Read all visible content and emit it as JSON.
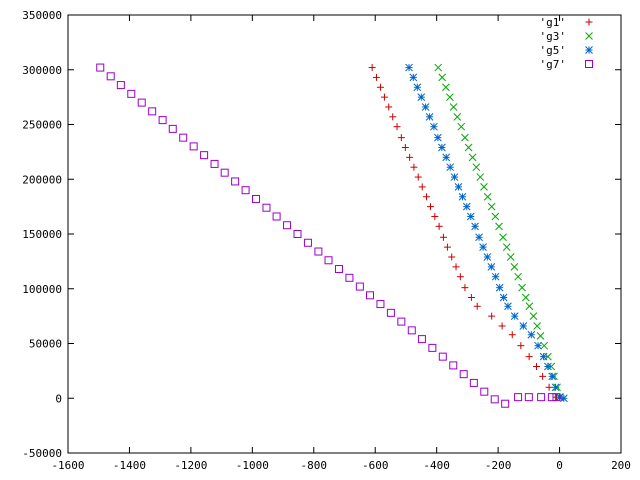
{
  "chart_data": {
    "type": "scatter",
    "title": "",
    "xlabel": "",
    "ylabel": "",
    "xlim": [
      -1600,
      200
    ],
    "ylim": [
      -50000,
      350000
    ],
    "xticks": [
      -1600,
      -1400,
      -1200,
      -1000,
      -800,
      -600,
      -400,
      -200,
      0,
      200
    ],
    "yticks": [
      -50000,
      0,
      50000,
      100000,
      150000,
      200000,
      250000,
      300000,
      350000
    ],
    "xtick_labels": [
      "-1600",
      "-1400",
      "-1200",
      "-1000",
      "-800",
      "-600",
      "-400",
      "-200",
      "0",
      "200"
    ],
    "ytick_labels": [
      "-50000",
      "0",
      "50000",
      "100000",
      "150000",
      "200000",
      "250000",
      "300000",
      "350000"
    ],
    "grid": false,
    "legend_position": "top-right",
    "series": [
      {
        "name": "'g1'",
        "marker": "plus",
        "color": "#cc0000",
        "points": [
          [
            -610,
            302000
          ],
          [
            -596,
            293000
          ],
          [
            -583,
            284000
          ],
          [
            -570,
            275000
          ],
          [
            -556,
            266000
          ],
          [
            -543,
            257000
          ],
          [
            -529,
            248000
          ],
          [
            -515,
            238000
          ],
          [
            -502,
            229000
          ],
          [
            -488,
            220000
          ],
          [
            -474,
            211000
          ],
          [
            -460,
            202000
          ],
          [
            -447,
            193000
          ],
          [
            -433,
            184000
          ],
          [
            -420,
            175000
          ],
          [
            -406,
            166000
          ],
          [
            -392,
            157000
          ],
          [
            -378,
            147000
          ],
          [
            -365,
            138000
          ],
          [
            -351,
            129000
          ],
          [
            -337,
            120000
          ],
          [
            -323,
            111000
          ],
          [
            -308,
            101000
          ],
          [
            -287,
            92000
          ],
          [
            -268,
            84000
          ],
          [
            -221,
            75000
          ],
          [
            -187,
            66000
          ],
          [
            -154,
            58000
          ],
          [
            -126,
            48000
          ],
          [
            -99,
            38000
          ],
          [
            -75,
            29000
          ],
          [
            -55,
            20000
          ],
          [
            -34,
            10000
          ],
          [
            -10,
            1000
          ]
        ]
      },
      {
        "name": "'g3'",
        "marker": "cross",
        "color": "#00aa00",
        "points": [
          [
            -395,
            302000
          ],
          [
            -382,
            293000
          ],
          [
            -370,
            284000
          ],
          [
            -357,
            275000
          ],
          [
            -345,
            266000
          ],
          [
            -333,
            257000
          ],
          [
            -320,
            248000
          ],
          [
            -308,
            238000
          ],
          [
            -296,
            229000
          ],
          [
            -283,
            220000
          ],
          [
            -271,
            211000
          ],
          [
            -258,
            202000
          ],
          [
            -246,
            193000
          ],
          [
            -234,
            184000
          ],
          [
            -221,
            175000
          ],
          [
            -209,
            166000
          ],
          [
            -197,
            157000
          ],
          [
            -184,
            147000
          ],
          [
            -172,
            138000
          ],
          [
            -159,
            129000
          ],
          [
            -147,
            120000
          ],
          [
            -135,
            111000
          ],
          [
            -122,
            101000
          ],
          [
            -110,
            92000
          ],
          [
            -98,
            84000
          ],
          [
            -85,
            75000
          ],
          [
            -73,
            66000
          ],
          [
            -62,
            57000
          ],
          [
            -50,
            48000
          ],
          [
            -38,
            38000
          ],
          [
            -27,
            29000
          ],
          [
            -18,
            20000
          ],
          [
            -8,
            10000
          ],
          [
            2,
            1000
          ]
        ]
      },
      {
        "name": "'g5'",
        "marker": "star",
        "color": "#0066cc",
        "points": [
          [
            -490,
            302000
          ],
          [
            -476,
            293000
          ],
          [
            -463,
            284000
          ],
          [
            -450,
            275000
          ],
          [
            -436,
            266000
          ],
          [
            -423,
            257000
          ],
          [
            -409,
            248000
          ],
          [
            -396,
            238000
          ],
          [
            -383,
            229000
          ],
          [
            -369,
            220000
          ],
          [
            -356,
            211000
          ],
          [
            -342,
            202000
          ],
          [
            -329,
            193000
          ],
          [
            -316,
            184000
          ],
          [
            -302,
            175000
          ],
          [
            -289,
            166000
          ],
          [
            -275,
            157000
          ],
          [
            -262,
            147000
          ],
          [
            -249,
            138000
          ],
          [
            -235,
            129000
          ],
          [
            -222,
            120000
          ],
          [
            -208,
            111000
          ],
          [
            -195,
            101000
          ],
          [
            -182,
            92000
          ],
          [
            -168,
            84000
          ],
          [
            -146,
            75000
          ],
          [
            -118,
            66000
          ],
          [
            -92,
            58000
          ],
          [
            -70,
            48000
          ],
          [
            -52,
            38000
          ],
          [
            -38,
            29000
          ],
          [
            -24,
            20000
          ],
          [
            -13,
            10000
          ],
          [
            0,
            1000
          ],
          [
            14,
            0
          ]
        ]
      },
      {
        "name": "'g7'",
        "marker": "square",
        "color": "#9900cc",
        "points": [
          [
            -1495,
            302000
          ],
          [
            -1461,
            294000
          ],
          [
            -1428,
            286000
          ],
          [
            -1394,
            278000
          ],
          [
            -1360,
            270000
          ],
          [
            -1326,
            262000
          ],
          [
            -1292,
            254000
          ],
          [
            -1259,
            246000
          ],
          [
            -1225,
            238000
          ],
          [
            -1191,
            230000
          ],
          [
            -1157,
            222000
          ],
          [
            -1123,
            214000
          ],
          [
            -1090,
            206000
          ],
          [
            -1056,
            198000
          ],
          [
            -1022,
            190000
          ],
          [
            -988,
            182000
          ],
          [
            -954,
            174000
          ],
          [
            -921,
            166000
          ],
          [
            -887,
            158000
          ],
          [
            -853,
            150000
          ],
          [
            -819,
            142000
          ],
          [
            -785,
            134000
          ],
          [
            -752,
            126000
          ],
          [
            -718,
            118000
          ],
          [
            -684,
            110000
          ],
          [
            -650,
            102000
          ],
          [
            -617,
            94000
          ],
          [
            -583,
            86000
          ],
          [
            -549,
            78000
          ],
          [
            -515,
            70000
          ],
          [
            -481,
            62000
          ],
          [
            -448,
            54000
          ],
          [
            -414,
            46000
          ],
          [
            -380,
            38000
          ],
          [
            -346,
            30000
          ],
          [
            -312,
            22000
          ],
          [
            -279,
            14000
          ],
          [
            -245,
            6000
          ],
          [
            -211,
            -1000
          ],
          [
            -177,
            -5000
          ],
          [
            -135,
            1000
          ],
          [
            -100,
            1000
          ],
          [
            -60,
            1000
          ],
          [
            -25,
            1000
          ],
          [
            -10,
            1000
          ]
        ]
      }
    ]
  }
}
